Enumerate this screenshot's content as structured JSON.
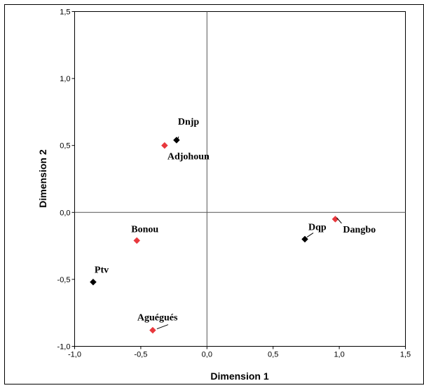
{
  "chart_data": {
    "type": "scatter",
    "xlabel": "Dimension 1",
    "ylabel": "Dimension 2",
    "xlim": [
      -1.0,
      1.5
    ],
    "ylim": [
      -1.0,
      1.5
    ],
    "xticks": [
      -1.0,
      -0.5,
      0.0,
      0.5,
      1.0,
      1.5
    ],
    "yticks": [
      -1.0,
      -0.5,
      0.0,
      0.5,
      1.0,
      1.5
    ],
    "xtick_labels": [
      "-1,0",
      "-0,5",
      "0,0",
      "0,5",
      "1,0",
      "1,5"
    ],
    "ytick_labels": [
      "-1,0",
      "-0,5",
      "0,0",
      "0,5",
      "1,0",
      "1,5"
    ],
    "grid": false,
    "reference_lines": {
      "x": 0.0,
      "y": 0.0
    },
    "series": [
      {
        "color": "#000000",
        "marker": "diamond",
        "points": [
          {
            "label": "Dnjp",
            "x": -0.23,
            "y": 0.54
          },
          {
            "label": "Dqp",
            "x": 0.74,
            "y": -0.2
          },
          {
            "label": "Ptv",
            "x": -0.86,
            "y": -0.52
          }
        ]
      },
      {
        "color": "#e8383d",
        "marker": "diamond",
        "points": [
          {
            "label": "Adjohoun",
            "x": -0.32,
            "y": 0.5
          },
          {
            "label": "Dangbo",
            "x": 0.97,
            "y": -0.05
          },
          {
            "label": "Bonou",
            "x": -0.53,
            "y": -0.21
          },
          {
            "label": "Aguégués",
            "x": -0.41,
            "y": -0.88
          }
        ]
      }
    ]
  }
}
